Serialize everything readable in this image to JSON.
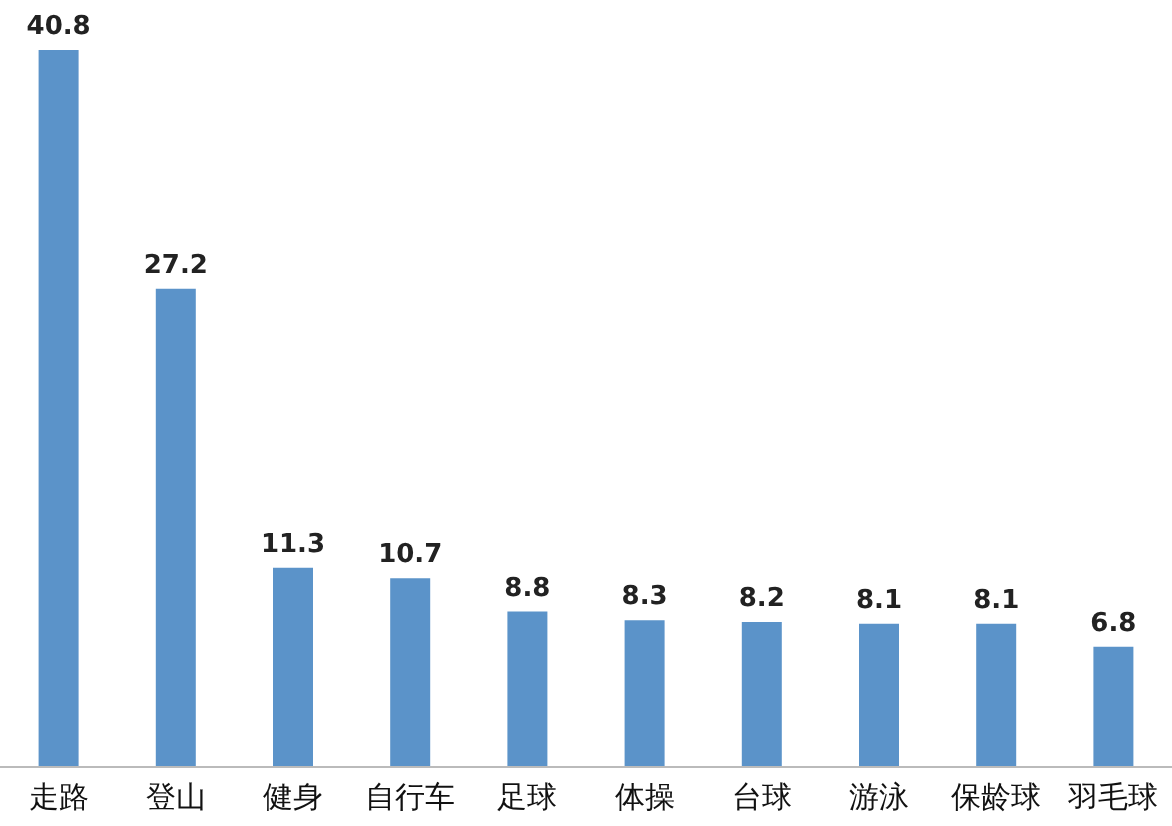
{
  "chart_data": {
    "type": "bar",
    "categories": [
      "走路",
      "登山",
      "健身",
      "自行车",
      "足球",
      "体操",
      "台球",
      "游泳",
      "保龄球",
      "羽毛球"
    ],
    "values": [
      40.8,
      27.2,
      11.3,
      10.7,
      8.8,
      8.3,
      8.2,
      8.1,
      8.1,
      6.8
    ],
    "color": "#5b93c9",
    "data_labels": true
  }
}
